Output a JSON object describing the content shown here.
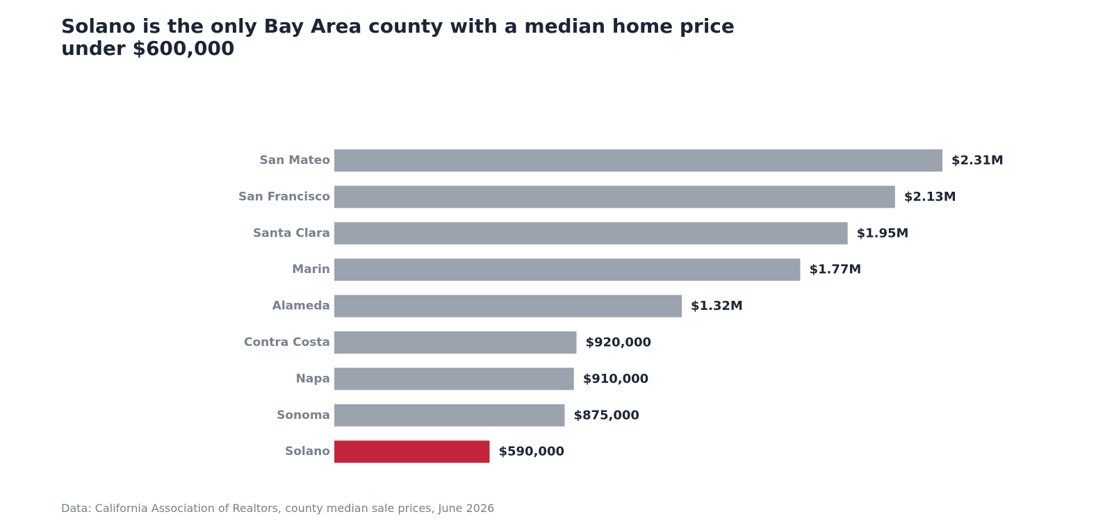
{
  "title": "Solano is the only Bay Area county with a median home price\nunder $600,000",
  "source": "Data: California Association of Realtors, county median sale prices, June 2026",
  "colors": {
    "default": "#9aa3ae",
    "highlight": "#c4253c"
  },
  "chart_data": {
    "type": "bar",
    "orientation": "horizontal",
    "title": "Solano is the only Bay Area county with a median home price under $600,000",
    "xlim": [
      0,
      2310000
    ],
    "grid": false,
    "categories": [
      "San Mateo",
      "San Francisco",
      "Santa Clara",
      "Marin",
      "Alameda",
      "Contra Costa",
      "Napa",
      "Sonoma",
      "Solano"
    ],
    "values": [
      2310000,
      2130000,
      1950000,
      1770000,
      1320000,
      920000,
      910000,
      875000,
      590000
    ],
    "value_labels": [
      "$2.31M",
      "$2.13M",
      "$1.95M",
      "$1.77M",
      "$1.32M",
      "$920,000",
      "$910,000",
      "$875,000",
      "$590,000"
    ],
    "highlight": "Solano"
  }
}
